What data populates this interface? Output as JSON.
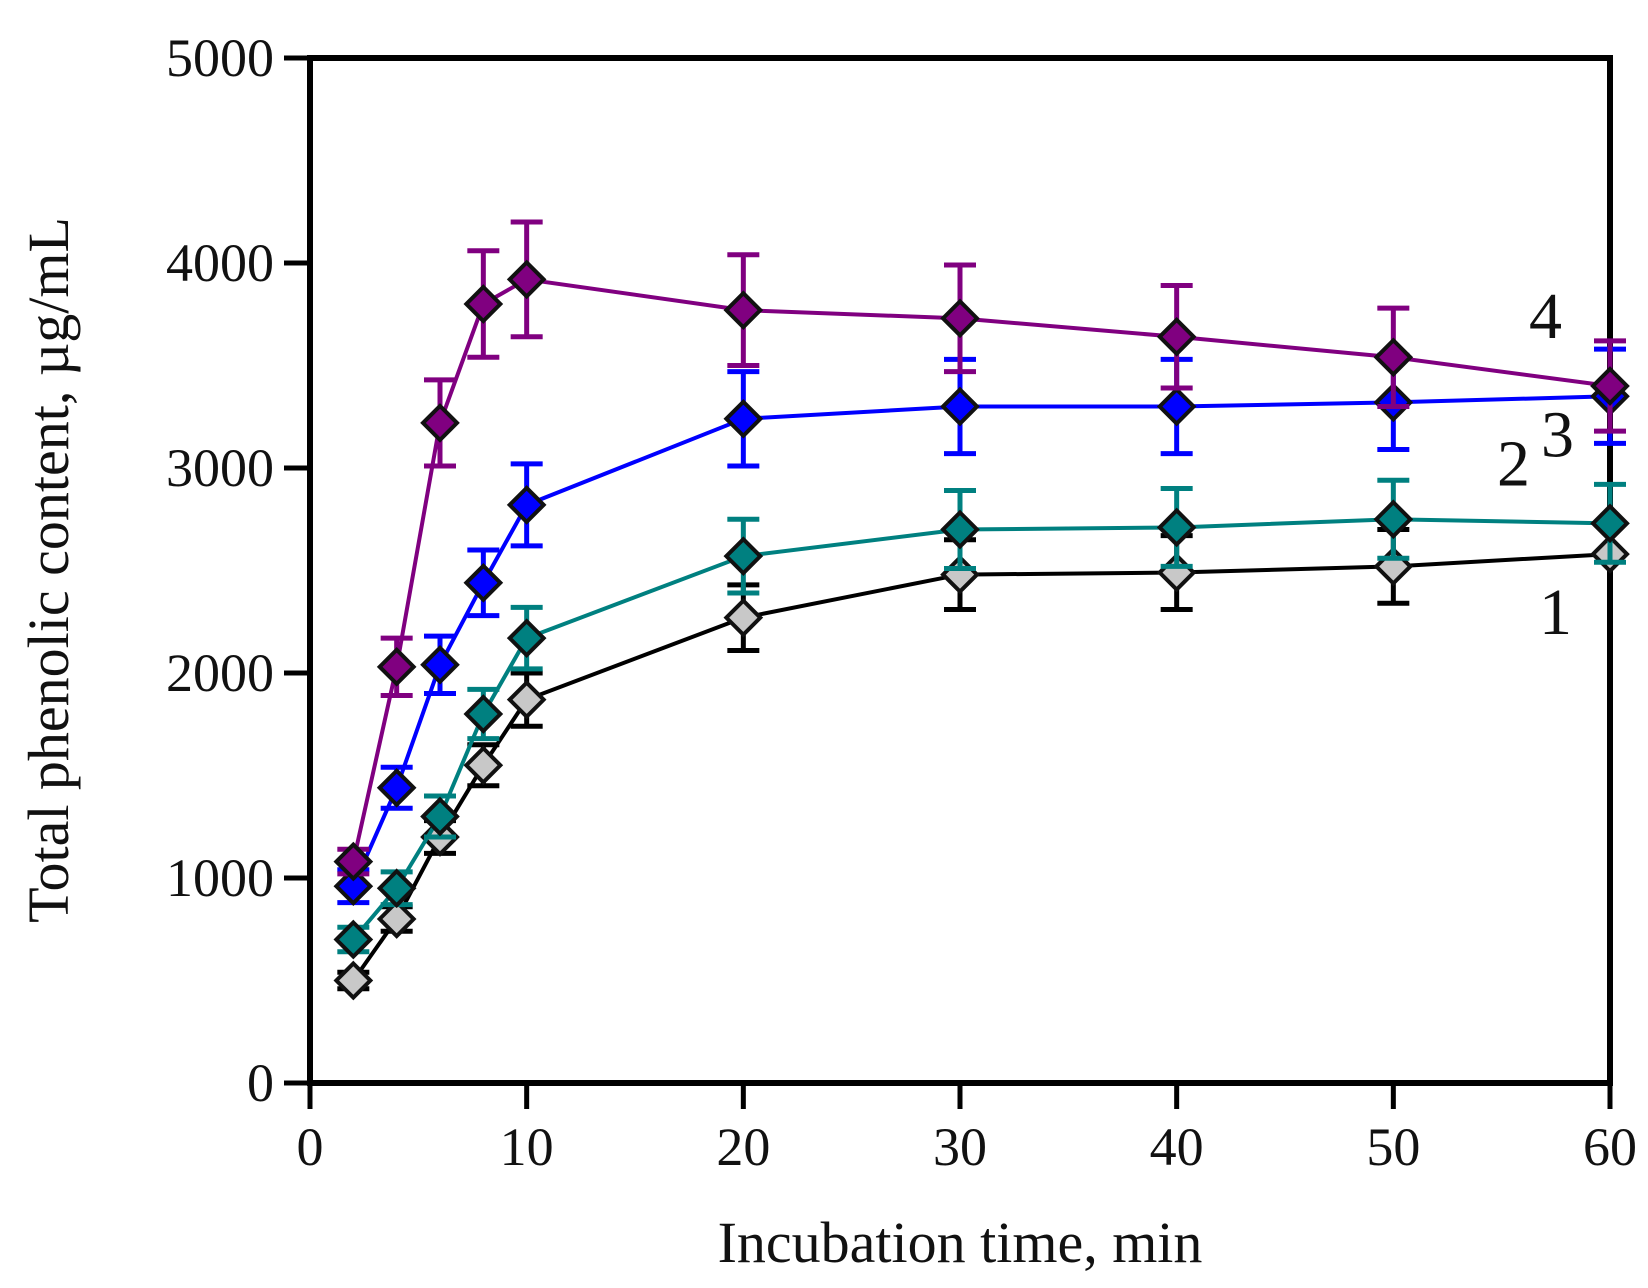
{
  "chart_data": {
    "type": "line",
    "title": "",
    "xlabel": "Incubation time, min",
    "ylabel": "Total phenolic content, µg/mL",
    "xlim": [
      0,
      60
    ],
    "ylim": [
      0,
      5000
    ],
    "xticks": [
      0,
      10,
      20,
      30,
      40,
      50,
      60
    ],
    "xtick_labels": [
      "0",
      "10",
      "20",
      "30",
      "40",
      "50",
      "60"
    ],
    "yticks": [
      0,
      1000,
      2000,
      3000,
      4000,
      5000
    ],
    "ytick_labels": [
      "0",
      "1000",
      "2000",
      "3000",
      "4000",
      "5000"
    ],
    "grid": false,
    "x": [
      2,
      4,
      6,
      8,
      10,
      20,
      30,
      40,
      50,
      60
    ],
    "series": [
      {
        "name": "1",
        "color": "#000000",
        "marker_fill": "#c8c8c8",
        "values": [
          500,
          800,
          1200,
          1550,
          1870,
          2270,
          2480,
          2490,
          2520,
          2580
        ],
        "errors": [
          40,
          60,
          80,
          100,
          130,
          160,
          170,
          180,
          180,
          0
        ]
      },
      {
        "name": "2",
        "color": "#008080",
        "marker_fill": "#008080",
        "values": [
          700,
          950,
          1300,
          1800,
          2170,
          2570,
          2700,
          2710,
          2750,
          2730
        ],
        "errors": [
          60,
          80,
          100,
          120,
          150,
          180,
          190,
          190,
          190,
          190
        ]
      },
      {
        "name": "3",
        "color": "#0000ff",
        "marker_fill": "#0000ff",
        "values": [
          960,
          1440,
          2040,
          2440,
          2820,
          3240,
          3300,
          3300,
          3320,
          3350
        ],
        "errors": [
          80,
          100,
          140,
          160,
          200,
          230,
          230,
          230,
          230,
          230
        ]
      },
      {
        "name": "4",
        "color": "#800080",
        "marker_fill": "#800080",
        "values": [
          1080,
          2030,
          3220,
          3800,
          3920,
          3770,
          3730,
          3640,
          3540,
          3400
        ],
        "errors": [
          60,
          140,
          210,
          260,
          280,
          270,
          260,
          250,
          240,
          220
        ]
      }
    ]
  }
}
